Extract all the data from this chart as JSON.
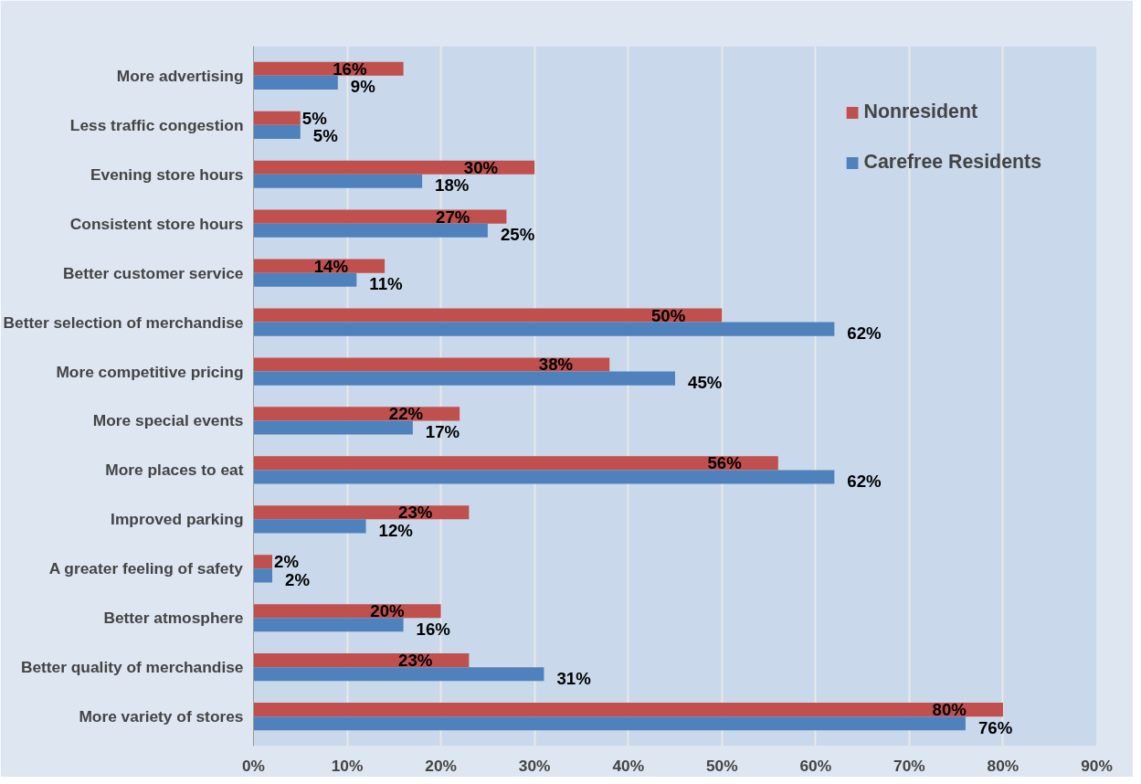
{
  "chart_data": {
    "type": "bar",
    "orientation": "horizontal",
    "categories": [
      "More advertising",
      "Less traffic congestion",
      "Evening store hours",
      "Consistent store hours",
      "Better customer service",
      "Better selection of merchandise",
      "More competitive pricing",
      "More special events",
      "More places to eat",
      "Improved parking",
      "A greater feeling of safety",
      "Better atmosphere",
      "Better quality of merchandise",
      "More variety of stores"
    ],
    "series": [
      {
        "name": "Nonresident",
        "color": "#c0504d",
        "values": [
          16,
          5,
          30,
          27,
          14,
          50,
          38,
          22,
          56,
          23,
          2,
          20,
          23,
          80
        ],
        "value_labels": [
          "16%",
          "5%",
          "30%",
          "27%",
          "14%",
          "50%",
          "38%",
          "22%",
          "56%",
          "23%",
          "2%",
          "20%",
          "23%",
          "80%"
        ]
      },
      {
        "name": "Carefree Residents",
        "color": "#4f81bd",
        "values": [
          9,
          5,
          18,
          25,
          11,
          62,
          45,
          17,
          62,
          12,
          2,
          16,
          31,
          76
        ],
        "value_labels": [
          "9%",
          "5%",
          "18%",
          "25%",
          "11%",
          "62%",
          "45%",
          "17%",
          "62%",
          "12%",
          "2%",
          "16%",
          "31%",
          "76%"
        ]
      }
    ],
    "xlim": [
      0,
      90
    ],
    "xticks": [
      {
        "value": 0,
        "label": "0%"
      },
      {
        "value": 10,
        "label": "10%"
      },
      {
        "value": 20,
        "label": "20%"
      },
      {
        "value": 30,
        "label": "30%"
      },
      {
        "value": 40,
        "label": "40%"
      },
      {
        "value": 50,
        "label": "50%"
      },
      {
        "value": 60,
        "label": "60%"
      },
      {
        "value": 70,
        "label": "70%"
      },
      {
        "value": 80,
        "label": "80%"
      },
      {
        "value": 90,
        "label": "90%"
      }
    ],
    "grid": "x",
    "legend": "top right"
  }
}
